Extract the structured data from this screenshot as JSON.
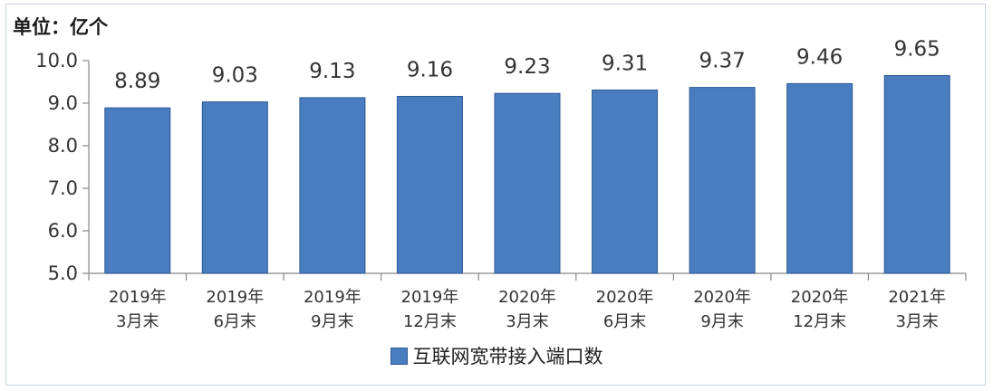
{
  "unit_label": "单位：亿个",
  "colors": {
    "bar_fill": "#4a7cc0",
    "bar_stroke": "#2c5a94",
    "axis": "#888888"
  },
  "chart_data": {
    "type": "bar",
    "title": "",
    "xlabel": "",
    "ylabel": "",
    "ylim": [
      5.0,
      10.0
    ],
    "ytick_values": [
      5.0,
      6.0,
      7.0,
      8.0,
      9.0,
      10.0
    ],
    "ytick_labels": [
      "5.0",
      "6.0",
      "7.0",
      "8.0",
      "9.0",
      "10.0"
    ],
    "grid": false,
    "legend_position": "bottom-center",
    "categories": [
      [
        "2019年",
        "3月末"
      ],
      [
        "2019年",
        "6月末"
      ],
      [
        "2019年",
        "9月末"
      ],
      [
        "2019年",
        "12月末"
      ],
      [
        "2020年",
        "3月末"
      ],
      [
        "2020年",
        "6月末"
      ],
      [
        "2020年",
        "9月末"
      ],
      [
        "2020年",
        "12月末"
      ],
      [
        "2021年",
        "3月末"
      ]
    ],
    "series": [
      {
        "name": "互联网宽带接入端口数",
        "values": [
          8.89,
          9.03,
          9.13,
          9.16,
          9.23,
          9.31,
          9.37,
          9.46,
          9.65
        ],
        "labels": [
          "8.89",
          "9.03",
          "9.13",
          "9.16",
          "9.23",
          "9.31",
          "9.37",
          "9.46",
          "9.65"
        ]
      }
    ]
  }
}
